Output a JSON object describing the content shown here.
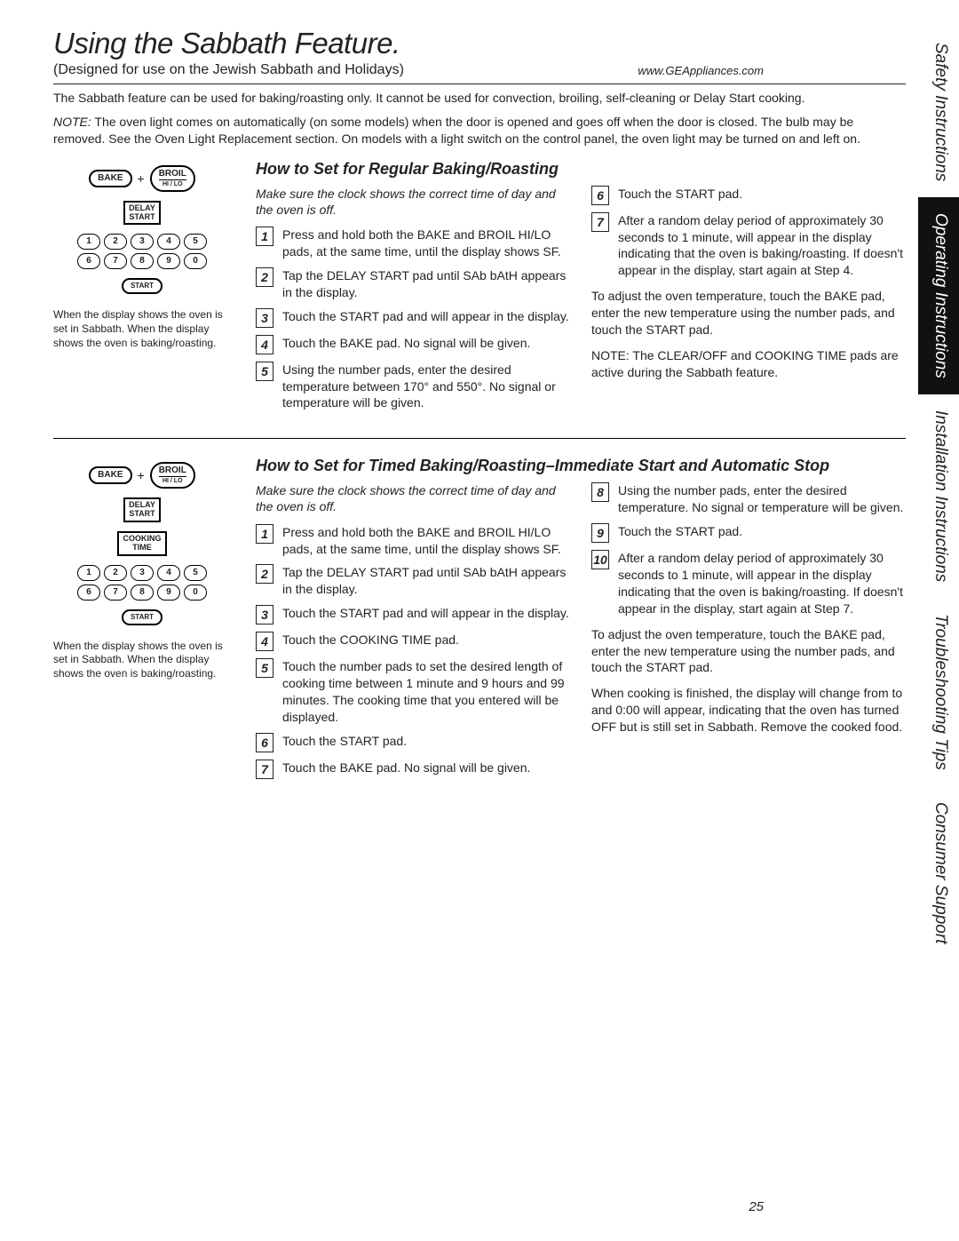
{
  "header": {
    "title": "Using the Sabbath Feature.",
    "subtitle": "(Designed for use on the Jewish Sabbath and Holidays)",
    "url": "www.GEAppliances.com"
  },
  "intro": {
    "p1": "The Sabbath feature can be used for baking/roasting only. It cannot be used for convection, broiling, self-cleaning or Delay Start cooking.",
    "p2_prefix": "NOTE:",
    "p2": " The oven light comes on automatically (on some models) when the door is opened and goes off when the door is closed. The bulb may be removed. See the Oven Light Replacement section. On models with a light switch on the control panel, the oven light may be turned on and left on."
  },
  "sidetabs": {
    "t1": "Safety Instructions",
    "t2": "Operating Instructions",
    "t3": "Installation Instructions",
    "t4": "Troubleshooting Tips",
    "t5": "Consumer Support"
  },
  "panel": {
    "bake": "BAKE",
    "plus": "+",
    "broil": "BROIL",
    "broil_sub": "HI / LO",
    "delay1": "DELAY",
    "delay2": "START",
    "cook1": "COOKING",
    "cook2": "TIME",
    "nums_r1": [
      "1",
      "2",
      "3",
      "4",
      "5"
    ],
    "nums_r2": [
      "6",
      "7",
      "8",
      "9",
      "0"
    ],
    "start": "START"
  },
  "caption": "When the display shows      the oven is set in Sabbath. When the display shows       the oven is baking/roasting.",
  "sectionA": {
    "head": "How to Set for Regular Baking/Roasting",
    "lead": "Make sure the clock shows the correct time of day and the oven is off.",
    "left": {
      "s1": "Press and hold both the BAKE and BROIL HI/LO pads, at the same time, until the display shows SF.",
      "s2": "Tap the DELAY START pad until SAb bAtH appears in the display.",
      "s3": "Touch the START pad and      will appear in the display.",
      "s4": "Touch the BAKE pad. No signal will be given.",
      "s5": "Using the number pads, enter the desired temperature between 170° and 550°. No signal or temperature will be given."
    },
    "right": {
      "s6": "Touch the START pad.",
      "s7": "After a random delay period of approximately 30 seconds to 1 minute,       will appear in the display indicating that the oven is baking/roasting. If       doesn't appear in the display, start again at Step 4.",
      "p1": "To adjust the oven temperature, touch the BAKE pad, enter the new temperature using the number pads, and touch the START pad.",
      "p2": "NOTE: The CLEAR/OFF and COOKING TIME pads are active during the Sabbath feature."
    }
  },
  "sectionB": {
    "head": "How to Set for Timed Baking/Roasting–Immediate Start and Automatic Stop",
    "lead": "Make sure the clock shows the correct time of day and the oven is off.",
    "left": {
      "s1": "Press and hold both the BAKE and BROIL HI/LO pads, at the same time, until the display shows SF.",
      "s2": "Tap the DELAY START pad until SAb bAtH appears in the display.",
      "s3": "Touch the START pad and      will appear in the display.",
      "s4": "Touch the COOKING TIME pad.",
      "s5": "Touch the number pads to set the desired length of cooking time between 1 minute and 9 hours and 99 minutes. The cooking time that you entered will be displayed.",
      "s6": "Touch the START pad.",
      "s7": "Touch the BAKE pad. No signal will be given."
    },
    "right": {
      "s8": "Using the number pads, enter the desired temperature. No signal or temperature will be given.",
      "s9": "Touch the START pad.",
      "s10": "After a random delay period of approximately 30 seconds to 1 minute,       will appear in the display indicating that the oven is baking/roasting. If       doesn't appear in the display, start again at Step 7.",
      "p1": "To adjust the oven temperature, touch the BAKE pad, enter the new temperature using the number pads, and touch the START pad.",
      "p2": "When cooking is finished, the display will change from       to       and 0:00 will appear, indicating that the oven has turned OFF but is still set in Sabbath. Remove the cooked food."
    }
  },
  "pagenum": "25"
}
